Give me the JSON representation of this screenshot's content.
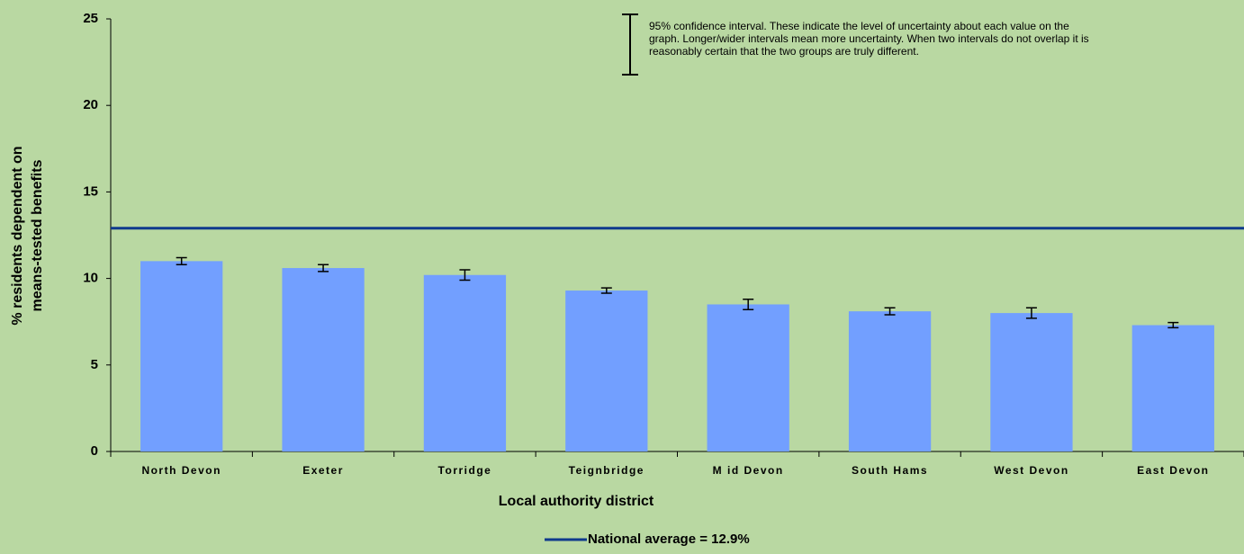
{
  "chart_data": {
    "type": "bar",
    "categories": [
      "North Devon",
      "Exeter",
      "Torridge",
      "Teignbridge",
      "M id Devon",
      "South Hams",
      "West Devon",
      "East Devon"
    ],
    "values": [
      11.0,
      10.6,
      10.2,
      9.3,
      8.5,
      8.1,
      8.0,
      7.3
    ],
    "errors": [
      0.2,
      0.2,
      0.3,
      0.15,
      0.3,
      0.2,
      0.3,
      0.15
    ],
    "color": "#729fff",
    "ylim": [
      0,
      25
    ],
    "yticks": [
      0,
      5,
      10,
      15,
      20,
      25
    ],
    "ylabel": [
      "% residents dependent on",
      "means-tested benefits"
    ],
    "xlabel": "Local authority district",
    "reference_line": {
      "label": "National average = 12.9%",
      "value": 12.9,
      "color": "#0f3a8c"
    },
    "annotation": [
      "95% confidence interval. These indicate the level of uncertainty about each value on the",
      "graph. Longer/wider intervals mean more uncertainty. When two intervals do not overlap it is",
      "reasonably certain that the two groups are truly different."
    ]
  }
}
